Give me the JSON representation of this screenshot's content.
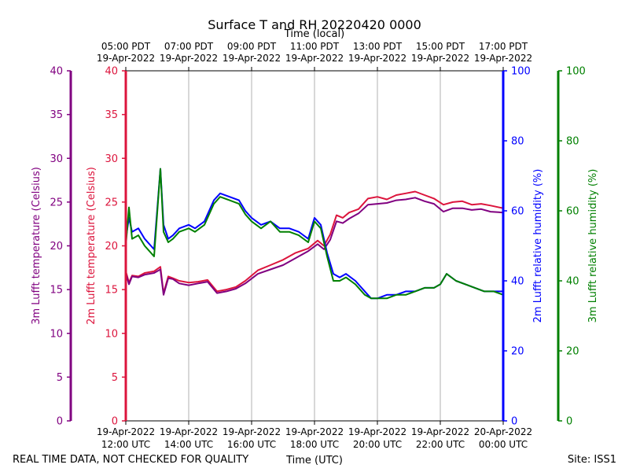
{
  "chart_data": {
    "type": "line",
    "title": "Surface T and RH 20220420 0000",
    "top_axis_label": "Time (local)",
    "xlabel": "Time (UTC)",
    "footer_left": "REAL TIME DATA, NOT CHECKED FOR QUALITY",
    "footer_right": "Site: ISS1",
    "xlim": [
      12,
      24
    ],
    "bottom_ticks": [
      {
        "x": 12,
        "line1": "19-Apr-2022",
        "line2": "12:00 UTC"
      },
      {
        "x": 14,
        "line1": "19-Apr-2022",
        "line2": "14:00 UTC"
      },
      {
        "x": 16,
        "line1": "19-Apr-2022",
        "line2": "16:00 UTC"
      },
      {
        "x": 18,
        "line1": "19-Apr-2022",
        "line2": "18:00 UTC"
      },
      {
        "x": 20,
        "line1": "19-Apr-2022",
        "line2": "20:00 UTC"
      },
      {
        "x": 22,
        "line1": "19-Apr-2022",
        "line2": "22:00 UTC"
      },
      {
        "x": 24,
        "line1": "20-Apr-2022",
        "line2": "00:00 UTC"
      }
    ],
    "top_ticks": [
      {
        "x": 12,
        "line1": "05:00 PDT",
        "line2": "19-Apr-2022"
      },
      {
        "x": 14,
        "line1": "07:00 PDT",
        "line2": "19-Apr-2022"
      },
      {
        "x": 16,
        "line1": "09:00 PDT",
        "line2": "19-Apr-2022"
      },
      {
        "x": 18,
        "line1": "11:00 PDT",
        "line2": "19-Apr-2022"
      },
      {
        "x": 20,
        "line1": "13:00 PDT",
        "line2": "19-Apr-2022"
      },
      {
        "x": 22,
        "line1": "15:00 PDT",
        "line2": "19-Apr-2022"
      },
      {
        "x": 24,
        "line1": "17:00 PDT",
        "line2": "19-Apr-2022"
      }
    ],
    "axes": [
      {
        "id": "t3",
        "label": "3m Lufft temperature (Celsius)",
        "color": "#800080",
        "ylim": [
          0,
          40
        ],
        "ticks": [
          "0",
          "5",
          "10",
          "15",
          "20",
          "25",
          "30",
          "35",
          "40"
        ]
      },
      {
        "id": "t2",
        "label": "2m Lufft temperature (Celsius)",
        "color": "#dc143c",
        "ylim": [
          0,
          40
        ],
        "ticks": [
          "0",
          "5",
          "10",
          "15",
          "20",
          "25",
          "30",
          "35",
          "40"
        ]
      },
      {
        "id": "rh2",
        "label": "2m Lufft relative humidity (%)",
        "color": "#0000ff",
        "ylim": [
          0,
          100
        ],
        "ticks": [
          "0",
          "20",
          "40",
          "60",
          "80",
          "100"
        ]
      },
      {
        "id": "rh3",
        "label": "3m Lufft relative humidity (%)",
        "color": "#008000",
        "ylim": [
          0,
          100
        ],
        "ticks": [
          "0",
          "20",
          "40",
          "60",
          "80",
          "100"
        ]
      }
    ],
    "series": [
      {
        "name": "2m Lufft temperature",
        "axis": "t2",
        "color": "#dc143c",
        "x": [
          12.0,
          12.1,
          12.2,
          12.4,
          12.6,
          12.9,
          13.1,
          13.2,
          13.35,
          13.5,
          13.7,
          14.0,
          14.3,
          14.6,
          14.9,
          15.2,
          15.5,
          15.8,
          16.2,
          16.6,
          17.0,
          17.4,
          17.8,
          18.1,
          18.3,
          18.5,
          18.7,
          18.9,
          19.1,
          19.4,
          19.7,
          20.0,
          20.3,
          20.6,
          20.9,
          21.2,
          21.5,
          21.8,
          22.1,
          22.4,
          22.7,
          23.0,
          23.3,
          23.6,
          24.0
        ],
        "y": [
          17.1,
          15.8,
          16.6,
          16.5,
          16.9,
          17.1,
          17.6,
          14.6,
          16.5,
          16.3,
          16.0,
          15.8,
          15.9,
          16.1,
          14.8,
          15.0,
          15.3,
          16.0,
          17.2,
          17.8,
          18.4,
          19.2,
          19.7,
          20.6,
          20.0,
          21.3,
          23.5,
          23.2,
          23.8,
          24.2,
          25.4,
          25.6,
          25.3,
          25.8,
          26.0,
          26.2,
          25.8,
          25.4,
          24.7,
          25.0,
          25.1,
          24.7,
          24.8,
          24.6,
          24.3
        ]
      },
      {
        "name": "3m Lufft temperature",
        "axis": "t3",
        "color": "#800080",
        "x": [
          12.0,
          12.1,
          12.2,
          12.4,
          12.6,
          12.9,
          13.1,
          13.2,
          13.35,
          13.5,
          13.7,
          14.0,
          14.3,
          14.6,
          14.9,
          15.2,
          15.5,
          15.8,
          16.2,
          16.6,
          17.0,
          17.4,
          17.8,
          18.1,
          18.3,
          18.5,
          18.7,
          18.9,
          19.1,
          19.4,
          19.7,
          20.0,
          20.3,
          20.6,
          20.9,
          21.2,
          21.5,
          21.8,
          22.1,
          22.4,
          22.7,
          23.0,
          23.3,
          23.6,
          24.0
        ],
        "y": [
          16.9,
          15.6,
          16.5,
          16.4,
          16.7,
          16.9,
          17.3,
          14.4,
          16.3,
          16.2,
          15.7,
          15.5,
          15.7,
          15.9,
          14.6,
          14.8,
          15.1,
          15.7,
          16.8,
          17.3,
          17.8,
          18.6,
          19.4,
          20.2,
          19.6,
          20.7,
          22.8,
          22.6,
          23.1,
          23.7,
          24.7,
          24.8,
          24.9,
          25.2,
          25.3,
          25.5,
          25.1,
          24.8,
          23.9,
          24.3,
          24.3,
          24.1,
          24.2,
          23.9,
          23.8
        ]
      },
      {
        "name": "2m Lufft relative humidity",
        "axis": "rh2",
        "color": "#0000ff",
        "x": [
          12.0,
          12.1,
          12.2,
          12.4,
          12.6,
          12.9,
          13.1,
          13.2,
          13.35,
          13.5,
          13.7,
          14.0,
          14.2,
          14.5,
          14.8,
          15.0,
          15.3,
          15.6,
          15.8,
          16.0,
          16.3,
          16.6,
          16.9,
          17.2,
          17.5,
          17.8,
          18.0,
          18.2,
          18.4,
          18.6,
          18.8,
          19.0,
          19.3,
          19.6,
          19.8,
          20.0,
          20.3,
          20.6,
          20.9,
          21.2,
          21.5,
          21.8,
          22.0,
          22.2,
          22.5,
          22.8,
          23.1,
          23.4,
          23.7,
          24.0
        ],
        "y": [
          52,
          58,
          54,
          55,
          52,
          49,
          72,
          56,
          52,
          53,
          55,
          56,
          55,
          57,
          63,
          65,
          64,
          63,
          60,
          58,
          56,
          57,
          55,
          55,
          54,
          52,
          58,
          56,
          48,
          42,
          41,
          42,
          40,
          37,
          35,
          35,
          36,
          36,
          37,
          37,
          38,
          38,
          39,
          42,
          40,
          39,
          38,
          37,
          37,
          37
        ]
      },
      {
        "name": "3m Lufft relative humidity",
        "axis": "rh3",
        "color": "#008000",
        "x": [
          12.0,
          12.1,
          12.2,
          12.4,
          12.6,
          12.9,
          13.1,
          13.2,
          13.35,
          13.5,
          13.7,
          14.0,
          14.2,
          14.5,
          14.8,
          15.0,
          15.3,
          15.6,
          15.8,
          16.0,
          16.3,
          16.6,
          16.9,
          17.2,
          17.5,
          17.8,
          18.0,
          18.2,
          18.4,
          18.6,
          18.8,
          19.0,
          19.3,
          19.6,
          19.8,
          20.0,
          20.3,
          20.6,
          20.9,
          21.2,
          21.5,
          21.8,
          22.0,
          22.2,
          22.5,
          22.8,
          23.1,
          23.4,
          23.7,
          24.0
        ],
        "y": [
          50,
          61,
          52,
          53,
          50,
          47,
          72,
          54,
          51,
          52,
          54,
          55,
          54,
          56,
          62,
          64,
          63,
          62,
          59,
          57,
          55,
          57,
          54,
          54,
          53,
          51,
          57,
          55,
          47,
          40,
          40,
          41,
          39,
          36,
          35,
          35,
          35,
          36,
          36,
          37,
          38,
          38,
          39,
          42,
          40,
          39,
          38,
          37,
          37,
          36
        ]
      }
    ]
  }
}
